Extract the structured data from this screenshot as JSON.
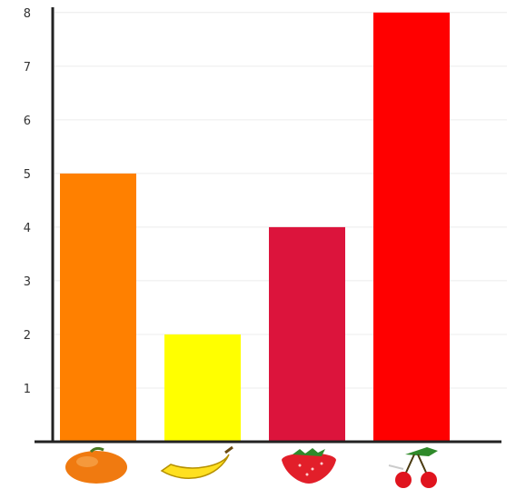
{
  "chart_data": {
    "type": "bar",
    "title": "",
    "xlabel": "",
    "ylabel": "",
    "categories": [
      "orange",
      "banana",
      "strawberry",
      "cherry"
    ],
    "category_icons": [
      "orange-icon",
      "banana-icon",
      "strawberry-icon",
      "cherry-icon"
    ],
    "values": [
      5,
      2,
      4,
      8
    ],
    "colors": [
      "#ff8000",
      "#ffff00",
      "#dc143c",
      "#ff0000"
    ],
    "ylim": [
      0,
      8.2
    ],
    "yticks": [
      "1",
      "2",
      "3",
      "4",
      "5",
      "6",
      "7",
      "8"
    ],
    "grid": true,
    "legend": "none"
  }
}
